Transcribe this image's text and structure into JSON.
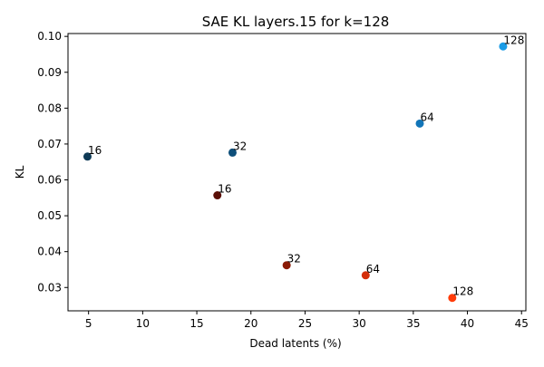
{
  "chart_data": {
    "type": "scatter",
    "title": "SAE KL layers.15 for k=128",
    "xlabel": "Dead latents (%)",
    "ylabel": "KL",
    "xlim": [
      3.1,
      45.4
    ],
    "ylim": [
      0.0235,
      0.1008
    ],
    "xticks": [
      5,
      10,
      15,
      20,
      25,
      30,
      35,
      40,
      45
    ],
    "yticks": [
      0.03,
      0.04,
      0.05,
      0.06,
      0.07,
      0.08,
      0.09,
      0.1
    ],
    "xtick_labels": [
      "5",
      "10",
      "15",
      "20",
      "25",
      "30",
      "35",
      "40",
      "45"
    ],
    "ytick_labels": [
      "0.03",
      "0.04",
      "0.05",
      "0.06",
      "0.07",
      "0.08",
      "0.09",
      "0.10"
    ],
    "grid": false,
    "legend": "none",
    "points": [
      {
        "x": 4.9,
        "y": 0.0665,
        "label": "16",
        "color": "#0e3a56"
      },
      {
        "x": 18.3,
        "y": 0.0676,
        "label": "32",
        "color": "#0e4f7a"
      },
      {
        "x": 35.6,
        "y": 0.0757,
        "label": "64",
        "color": "#1275b8"
      },
      {
        "x": 43.3,
        "y": 0.0972,
        "label": "128",
        "color": "#1a9be6"
      },
      {
        "x": 16.9,
        "y": 0.0557,
        "label": "16",
        "color": "#5a0f06"
      },
      {
        "x": 23.3,
        "y": 0.0362,
        "label": "32",
        "color": "#8a1a05"
      },
      {
        "x": 30.6,
        "y": 0.0334,
        "label": "64",
        "color": "#d42e0a"
      },
      {
        "x": 38.6,
        "y": 0.0271,
        "label": "128",
        "color": "#ff3c0a"
      }
    ]
  }
}
